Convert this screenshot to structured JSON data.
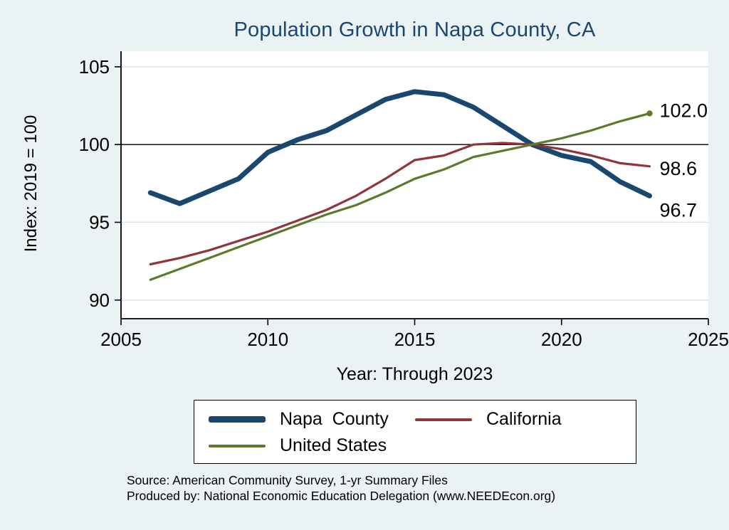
{
  "title": "Population Growth in Napa County, CA",
  "ylabel": "Index: 2019 = 100",
  "xlabel": "Year: Through 2023",
  "notes": [
    "Source: American Community Survey, 1-yr Summary Files",
    "Produced by: National Economic Education Delegation (www.NEEDEcon.org)"
  ],
  "colors": {
    "background": "#eaf2f3",
    "plot_background": "#ffffff",
    "grid": "#d3e3ec",
    "title": "#1a476f",
    "axis": "#000000",
    "reference_line": "#000000"
  },
  "chart_data": {
    "type": "line",
    "title": "Population Growth in Napa County, CA",
    "xlabel": "Year: Through 2023",
    "ylabel": "Index: 2019 = 100",
    "x": [
      2006,
      2007,
      2008,
      2009,
      2010,
      2011,
      2012,
      2013,
      2014,
      2015,
      2016,
      2017,
      2018,
      2019,
      2020,
      2021,
      2022,
      2023
    ],
    "xlim": [
      2005,
      2025
    ],
    "ylim": [
      90,
      105
    ],
    "xticks": [
      2005,
      2010,
      2015,
      2020,
      2025
    ],
    "yticks": [
      90,
      95,
      100,
      105
    ],
    "grid": true,
    "reference_line_y": 100,
    "legend_position": "bottom",
    "series": [
      {
        "name": "Napa  County",
        "color": "#1a476f",
        "width": 7,
        "end_label": "96.7",
        "values": [
          96.9,
          96.2,
          97.0,
          97.8,
          99.5,
          100.3,
          100.9,
          101.9,
          102.9,
          103.4,
          103.2,
          102.4,
          101.2,
          100.0,
          99.3,
          98.9,
          97.6,
          96.7
        ]
      },
      {
        "name": "California",
        "color": "#90353b",
        "width": 3.2,
        "end_label": "98.6",
        "values": [
          92.3,
          92.7,
          93.2,
          93.8,
          94.4,
          95.1,
          95.8,
          96.7,
          97.8,
          99.0,
          99.3,
          100.0,
          100.1,
          100.0,
          99.7,
          99.3,
          98.8,
          98.6
        ]
      },
      {
        "name": "United States",
        "color": "#5d7a2c",
        "width": 3.2,
        "end_label": "102.0",
        "marker_end": true,
        "values": [
          91.3,
          92.0,
          92.7,
          93.4,
          94.1,
          94.8,
          95.5,
          96.1,
          96.9,
          97.8,
          98.4,
          99.2,
          99.6,
          100.0,
          100.4,
          100.9,
          101.5,
          102.0
        ]
      }
    ]
  }
}
